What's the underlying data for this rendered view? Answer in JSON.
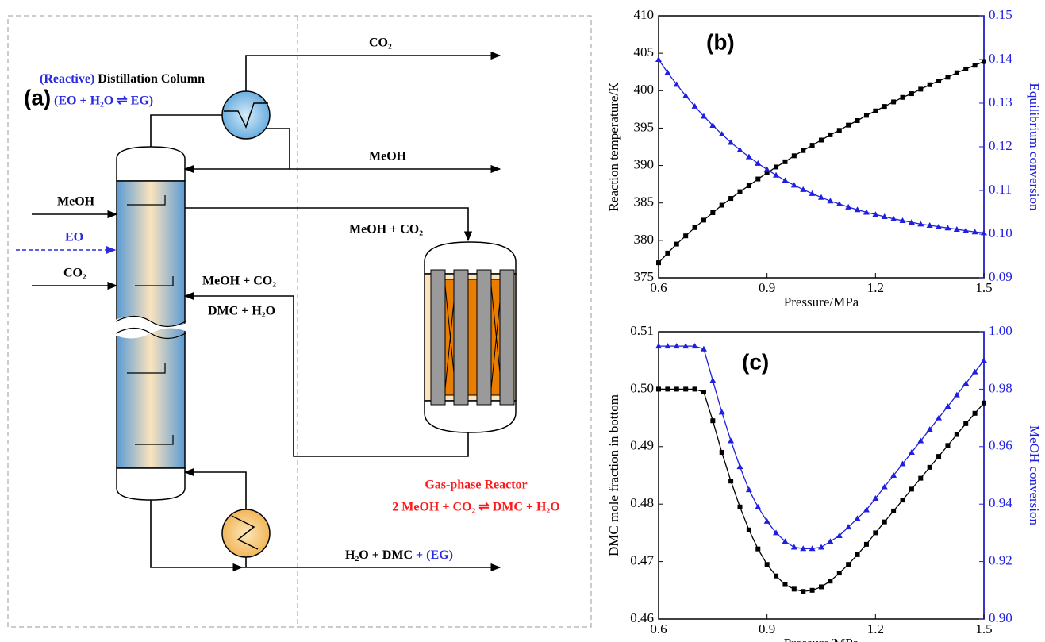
{
  "diagram": {
    "panel_label": "(a)",
    "column_title_prefix": "(Reactive)",
    "column_title": " Distillation Column",
    "column_reaction": "(EO + H₂O ⇌ EG)",
    "top_product": "CO₂",
    "recycle_product": "MeOH",
    "side_draw": "MeOH + CO₂",
    "feed_meoh": "MeOH",
    "feed_eo": "EO",
    "feed_co2": "CO₂",
    "return_top": "MeOH + CO₂",
    "return_bottom": "DMC + H₂O",
    "reactor_title": "Gas-phase Reactor",
    "reactor_reaction": "2 MeOH + CO₂ ⇌ DMC + H₂O",
    "bottom_product": "H₂O + DMC",
    "bottom_product_extra": " + (EG)"
  },
  "chart_data": [
    {
      "type": "line",
      "panel_label": "(b)",
      "xlabel": "Pressure/MPa",
      "ylabel": "Reaction temperature/K",
      "y2label": "Equilibrium conversion",
      "x": [
        0.6,
        0.625,
        0.65,
        0.675,
        0.7,
        0.725,
        0.75,
        0.775,
        0.8,
        0.825,
        0.85,
        0.875,
        0.9,
        0.925,
        0.95,
        0.975,
        1.0,
        1.025,
        1.05,
        1.075,
        1.1,
        1.125,
        1.15,
        1.175,
        1.2,
        1.225,
        1.25,
        1.275,
        1.3,
        1.325,
        1.35,
        1.375,
        1.4,
        1.425,
        1.45,
        1.475,
        1.5
      ],
      "series": [
        {
          "color": "#000000",
          "marker": "square",
          "values": [
            377.0,
            378.3,
            379.5,
            380.6,
            381.7,
            382.7,
            383.7,
            384.7,
            385.6,
            386.5,
            387.3,
            388.2,
            389.0,
            389.8,
            390.5,
            391.3,
            392.0,
            392.7,
            393.4,
            394.1,
            394.7,
            395.4,
            396.0,
            396.7,
            397.3,
            397.9,
            398.5,
            399.1,
            399.6,
            400.2,
            400.8,
            401.3,
            401.8,
            402.4,
            402.9,
            403.4,
            403.9
          ]
        },
        {
          "color": "#1f1fe0",
          "marker": "triangle",
          "axis": "y2",
          "values": [
            0.14,
            0.137,
            0.1343,
            0.1317,
            0.1293,
            0.127,
            0.1249,
            0.1229,
            0.121,
            0.1193,
            0.1177,
            0.1162,
            0.1148,
            0.1135,
            0.1123,
            0.1112,
            0.1102,
            0.1093,
            0.1084,
            0.1076,
            0.1069,
            0.1062,
            0.1056,
            0.105,
            0.1045,
            0.104,
            0.1035,
            0.1031,
            0.1027,
            0.1023,
            0.102,
            0.1017,
            0.1014,
            0.1011,
            0.1008,
            0.1005,
            0.1003
          ]
        }
      ],
      "xlim": [
        0.6,
        1.5
      ],
      "xticks": [
        0.6,
        0.9,
        1.2,
        1.5
      ],
      "ylim": [
        375,
        410
      ],
      "yticks": [
        375,
        380,
        385,
        390,
        395,
        400,
        405,
        410
      ],
      "y2lim": [
        0.09,
        0.15
      ],
      "y2ticks": [
        0.09,
        {
          "value": 0.1,
          "label": "0.10"
        },
        0.11,
        0.12,
        0.13,
        0.14,
        0.15
      ]
    },
    {
      "type": "line",
      "panel_label": "(c)",
      "xlabel": "Pressure/MPa",
      "ylabel": "DMC mole fraction  in bottom",
      "y2label": "MeOH conversion",
      "x": [
        0.6,
        0.625,
        0.65,
        0.675,
        0.7,
        0.725,
        0.75,
        0.775,
        0.8,
        0.825,
        0.85,
        0.875,
        0.9,
        0.925,
        0.95,
        0.975,
        1.0,
        1.025,
        1.05,
        1.075,
        1.1,
        1.125,
        1.15,
        1.175,
        1.2,
        1.225,
        1.25,
        1.275,
        1.3,
        1.325,
        1.35,
        1.375,
        1.4,
        1.425,
        1.45,
        1.475,
        1.5
      ],
      "series": [
        {
          "color": "#000000",
          "marker": "square",
          "values": [
            0.5,
            0.5,
            0.5,
            0.5,
            0.5,
            0.4995,
            0.4945,
            0.489,
            0.484,
            0.4795,
            0.4755,
            0.4722,
            0.4695,
            0.4675,
            0.466,
            0.4652,
            0.4648,
            0.465,
            0.4656,
            0.4666,
            0.468,
            0.4695,
            0.4712,
            0.473,
            0.475,
            0.4769,
            0.4788,
            0.4807,
            0.4826,
            0.4845,
            0.4864,
            0.4883,
            0.4902,
            0.4921,
            0.494,
            0.4958,
            0.4976
          ]
        },
        {
          "color": "#1f1fe0",
          "marker": "triangle",
          "axis": "y2",
          "values": [
            0.995,
            0.995,
            0.995,
            0.995,
            0.995,
            0.994,
            0.983,
            0.972,
            0.962,
            0.953,
            0.945,
            0.939,
            0.934,
            0.93,
            0.927,
            0.925,
            0.9245,
            0.9245,
            0.925,
            0.927,
            0.929,
            0.932,
            0.935,
            0.938,
            0.942,
            0.946,
            0.95,
            0.954,
            0.958,
            0.962,
            0.966,
            0.97,
            0.974,
            0.978,
            0.982,
            0.986,
            0.99
          ]
        }
      ],
      "xlim": [
        0.6,
        1.5
      ],
      "xticks": [
        0.6,
        0.9,
        1.2,
        1.5
      ],
      "ylim": [
        0.46,
        0.51
      ],
      "yticks": [
        0.46,
        0.47,
        0.48,
        0.49,
        {
          "value": 0.5,
          "label": "0.50"
        },
        0.51
      ],
      "y2lim": [
        0.9,
        1.0
      ],
      "y2ticks": [
        {
          "value": 0.9,
          "label": "0.90"
        },
        0.92,
        0.94,
        0.96,
        0.98,
        {
          "value": 1.0,
          "label": "1.00"
        }
      ]
    }
  ]
}
